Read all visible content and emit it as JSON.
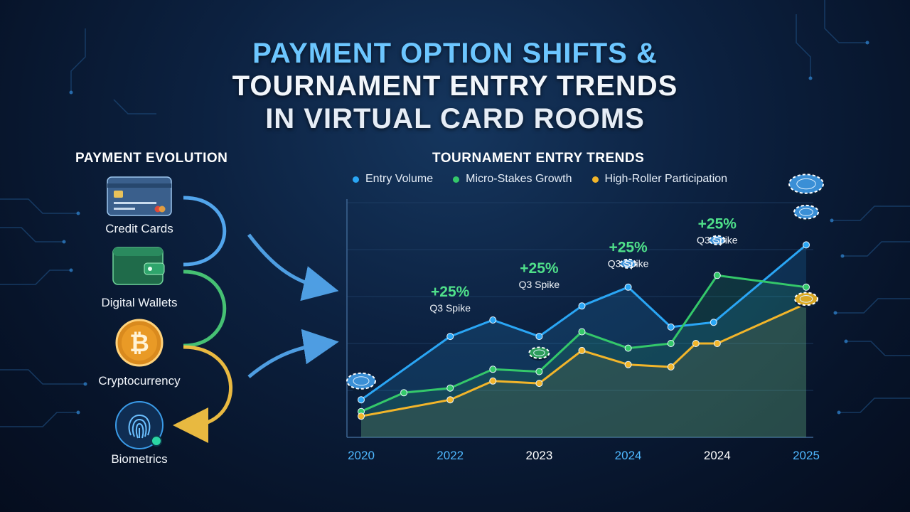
{
  "title": {
    "line1": "PAYMENT OPTION SHIFTS &",
    "line2": "TOURNAMENT ENTRY TRENDS",
    "line3": "IN VIRTUAL CARD ROOMS"
  },
  "payment": {
    "heading": "PAYMENT EVOLUTION",
    "items": [
      {
        "label": "Credit Cards",
        "icon": "credit-card-icon"
      },
      {
        "label": "Digital Wallets",
        "icon": "wallet-icon"
      },
      {
        "label": "Cryptocurrency",
        "icon": "bitcoin-icon"
      },
      {
        "label": "Biometrics",
        "icon": "fingerprint-icon"
      }
    ]
  },
  "chart_data": {
    "type": "line",
    "title": "TOURNAMENT ENTRY TRENDS",
    "x_tick_labels": [
      "2020",
      "2022",
      "2023",
      "2024",
      "2024",
      "2025"
    ],
    "x_tick_colors": [
      "#4fb8ff",
      "#4fb8ff",
      "#ffffff",
      "#4fb8ff",
      "#ffffff",
      "#4fb8ff"
    ],
    "x_positions": [
      0,
      1,
      2,
      3,
      4,
      5,
      6,
      7,
      8,
      9,
      10,
      11,
      12
    ],
    "x_tick_positions": [
      0,
      2.5,
      5,
      7.5,
      10,
      12.5
    ],
    "ylim": [
      0,
      100
    ],
    "grid": true,
    "legend_placement": "top",
    "series": [
      {
        "name": "Entry Volume",
        "color": "#2aa6f5",
        "points": [
          [
            0,
            16
          ],
          [
            2.5,
            43
          ],
          [
            3.7,
            50
          ],
          [
            5,
            43
          ],
          [
            6.2,
            56
          ],
          [
            7.5,
            64
          ],
          [
            8.7,
            47
          ],
          [
            9.9,
            49
          ],
          [
            12.5,
            82
          ]
        ]
      },
      {
        "name": "Micro-Stakes Growth",
        "color": "#34c86a",
        "points": [
          [
            0,
            11
          ],
          [
            1.2,
            19
          ],
          [
            2.5,
            21
          ],
          [
            3.7,
            29
          ],
          [
            5,
            28
          ],
          [
            6.2,
            45
          ],
          [
            7.5,
            38
          ],
          [
            8.7,
            40
          ],
          [
            10,
            69
          ],
          [
            12.5,
            64
          ]
        ]
      },
      {
        "name": "High-Roller Participation",
        "color": "#f2b52a",
        "points": [
          [
            0,
            9
          ],
          [
            2.5,
            16
          ],
          [
            3.7,
            24
          ],
          [
            5,
            23
          ],
          [
            6.2,
            37
          ],
          [
            7.5,
            31
          ],
          [
            8.7,
            30
          ],
          [
            9.4,
            40
          ],
          [
            10,
            40
          ],
          [
            12.5,
            57
          ]
        ]
      }
    ],
    "annotations": [
      {
        "value": "+25%",
        "label": "Q3 Spike"
      },
      {
        "value": "+25%",
        "label": "Q3 Spike"
      },
      {
        "value": "+25%",
        "label": "Q3 Spike"
      },
      {
        "value": "+25%",
        "label": "Q3 Spike"
      }
    ]
  }
}
